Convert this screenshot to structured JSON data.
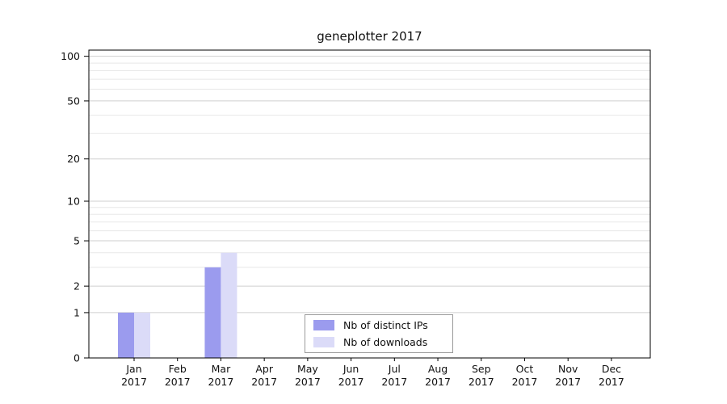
{
  "chart_data": {
    "type": "bar",
    "title": "geneplotter 2017",
    "categories": [
      "Jan",
      "Feb",
      "Mar",
      "Apr",
      "May",
      "Jun",
      "Jul",
      "Aug",
      "Sep",
      "Oct",
      "Nov",
      "Dec"
    ],
    "year": "2017",
    "series": [
      {
        "name": "Nb of distinct IPs",
        "color": "#9b9bee",
        "values": [
          1,
          0,
          3,
          0,
          0,
          0,
          0,
          0,
          0,
          0,
          0,
          0
        ]
      },
      {
        "name": "Nb of downloads",
        "color": "#dbdbf8",
        "values": [
          1,
          0,
          4,
          0,
          0,
          0,
          0,
          0,
          0,
          0,
          0,
          0
        ]
      }
    ],
    "y_ticks": [
      0,
      1,
      2,
      5,
      10,
      20,
      50,
      100
    ],
    "y_minor_gridlines": [
      3,
      4,
      6,
      7,
      8,
      9,
      30,
      40,
      60,
      70,
      80,
      90
    ],
    "y_max": 110,
    "scale": "log1p",
    "ylim_labels": [
      0,
      100
    ],
    "grid": "horizontal",
    "legend_position": "bottom-center",
    "colors": {
      "major_gridline": "#cfcfcf",
      "minor_gridline": "#e8e8e8",
      "axis": "#000000",
      "text": "#111111"
    }
  }
}
